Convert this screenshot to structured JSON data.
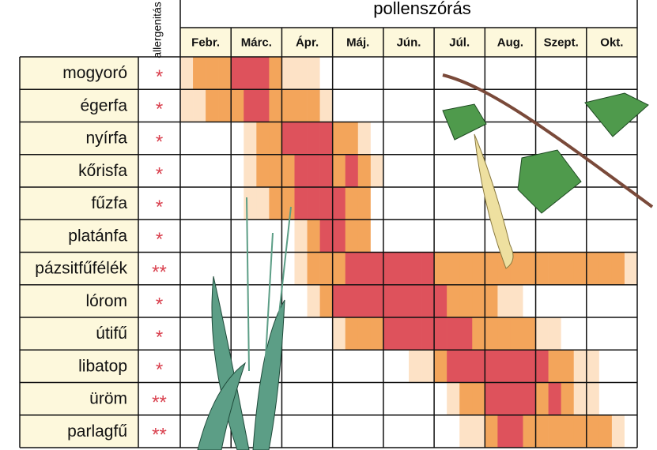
{
  "header": {
    "title": "pollenszórás",
    "allergen_label": "allergenitás"
  },
  "months": [
    "Febr.",
    "Márc.",
    "Ápr.",
    "Máj.",
    "Jún.",
    "Júl.",
    "Aug.",
    "Szept.",
    "Okt."
  ],
  "level_colors": [
    "#ffffff",
    "#fde2c6",
    "#f3a55b",
    "#de525c"
  ],
  "rows": [
    {
      "plant": "mogyoró",
      "allergenicity": "*",
      "levels": [
        1,
        2,
        2,
        2,
        3,
        3,
        3,
        2,
        1,
        1,
        1,
        0,
        0,
        0,
        0,
        0,
        0,
        0,
        0,
        0,
        0,
        0,
        0,
        0,
        0,
        0,
        0,
        0,
        0,
        0,
        0,
        0,
        0,
        0,
        0,
        0
      ]
    },
    {
      "plant": "égerfa",
      "allergenicity": "*",
      "levels": [
        1,
        1,
        2,
        2,
        2,
        3,
        3,
        2,
        2,
        2,
        2,
        1,
        0,
        0,
        0,
        0,
        0,
        0,
        0,
        0,
        0,
        0,
        0,
        0,
        0,
        0,
        0,
        0,
        0,
        0,
        0,
        0,
        0,
        0,
        0,
        0
      ]
    },
    {
      "plant": "nyírfa",
      "allergenicity": "*",
      "levels": [
        0,
        0,
        0,
        0,
        0,
        1,
        2,
        2,
        3,
        3,
        3,
        3,
        2,
        2,
        1,
        0,
        0,
        0,
        0,
        0,
        0,
        0,
        0,
        0,
        0,
        0,
        0,
        0,
        0,
        0,
        0,
        0,
        0,
        0,
        0,
        0
      ]
    },
    {
      "plant": "kőrisfa",
      "allergenicity": "*",
      "levels": [
        0,
        0,
        0,
        0,
        0,
        1,
        2,
        2,
        2,
        3,
        3,
        3,
        2,
        3,
        2,
        1,
        0,
        0,
        0,
        0,
        0,
        0,
        0,
        0,
        0,
        0,
        0,
        0,
        0,
        0,
        0,
        0,
        0,
        0,
        0,
        0
      ]
    },
    {
      "plant": "fűzfa",
      "allergenicity": "*",
      "levels": [
        0,
        0,
        0,
        0,
        0,
        1,
        1,
        2,
        2,
        3,
        3,
        3,
        3,
        2,
        2,
        0,
        0,
        0,
        0,
        0,
        0,
        0,
        0,
        0,
        0,
        0,
        0,
        0,
        0,
        0,
        0,
        0,
        0,
        0,
        0,
        0
      ]
    },
    {
      "plant": "platánfa",
      "allergenicity": "*",
      "levels": [
        0,
        0,
        0,
        0,
        0,
        0,
        0,
        0,
        0,
        1,
        2,
        3,
        3,
        2,
        2,
        0,
        0,
        0,
        0,
        0,
        0,
        0,
        0,
        0,
        0,
        0,
        0,
        0,
        0,
        0,
        0,
        0,
        0,
        0,
        0,
        0
      ]
    },
    {
      "plant": "pázsitfűfélék",
      "allergenicity": "**",
      "levels": [
        0,
        0,
        0,
        0,
        0,
        0,
        0,
        0,
        0,
        1,
        2,
        2,
        2,
        3,
        3,
        3,
        3,
        3,
        3,
        3,
        2,
        2,
        2,
        2,
        2,
        2,
        2,
        2,
        2,
        2,
        2,
        2,
        2,
        2,
        2,
        1
      ]
    },
    {
      "plant": "lórom",
      "allergenicity": "*",
      "levels": [
        0,
        0,
        0,
        0,
        0,
        0,
        0,
        0,
        0,
        0,
        1,
        2,
        3,
        3,
        3,
        3,
        3,
        3,
        3,
        3,
        3,
        2,
        2,
        2,
        2,
        1,
        1,
        0,
        0,
        0,
        0,
        0,
        0,
        0,
        0,
        0
      ]
    },
    {
      "plant": "útifű",
      "allergenicity": "*",
      "levels": [
        0,
        0,
        0,
        0,
        0,
        0,
        0,
        0,
        0,
        0,
        0,
        0,
        1,
        2,
        2,
        2,
        3,
        3,
        3,
        3,
        3,
        3,
        3,
        2,
        2,
        2,
        2,
        2,
        1,
        1,
        0,
        0,
        0,
        0,
        0,
        0
      ]
    },
    {
      "plant": "libatop",
      "allergenicity": "*",
      "levels": [
        0,
        0,
        0,
        0,
        0,
        0,
        0,
        0,
        0,
        0,
        0,
        0,
        0,
        0,
        0,
        0,
        0,
        0,
        1,
        1,
        2,
        3,
        3,
        3,
        3,
        3,
        3,
        3,
        3,
        2,
        2,
        1,
        1,
        0,
        0,
        0
      ]
    },
    {
      "plant": "üröm",
      "allergenicity": "**",
      "levels": [
        0,
        0,
        0,
        0,
        0,
        0,
        0,
        0,
        0,
        0,
        0,
        0,
        0,
        0,
        0,
        0,
        0,
        0,
        0,
        0,
        0,
        1,
        2,
        2,
        3,
        3,
        3,
        3,
        2,
        3,
        2,
        1,
        1,
        0,
        0,
        0
      ]
    },
    {
      "plant": "parlagfű",
      "allergenicity": "**",
      "levels": [
        0,
        0,
        0,
        0,
        0,
        0,
        0,
        0,
        0,
        0,
        0,
        0,
        0,
        0,
        0,
        0,
        0,
        0,
        0,
        0,
        0,
        0,
        1,
        1,
        2,
        3,
        3,
        2,
        2,
        2,
        2,
        2,
        2,
        2,
        1,
        0
      ]
    }
  ]
}
